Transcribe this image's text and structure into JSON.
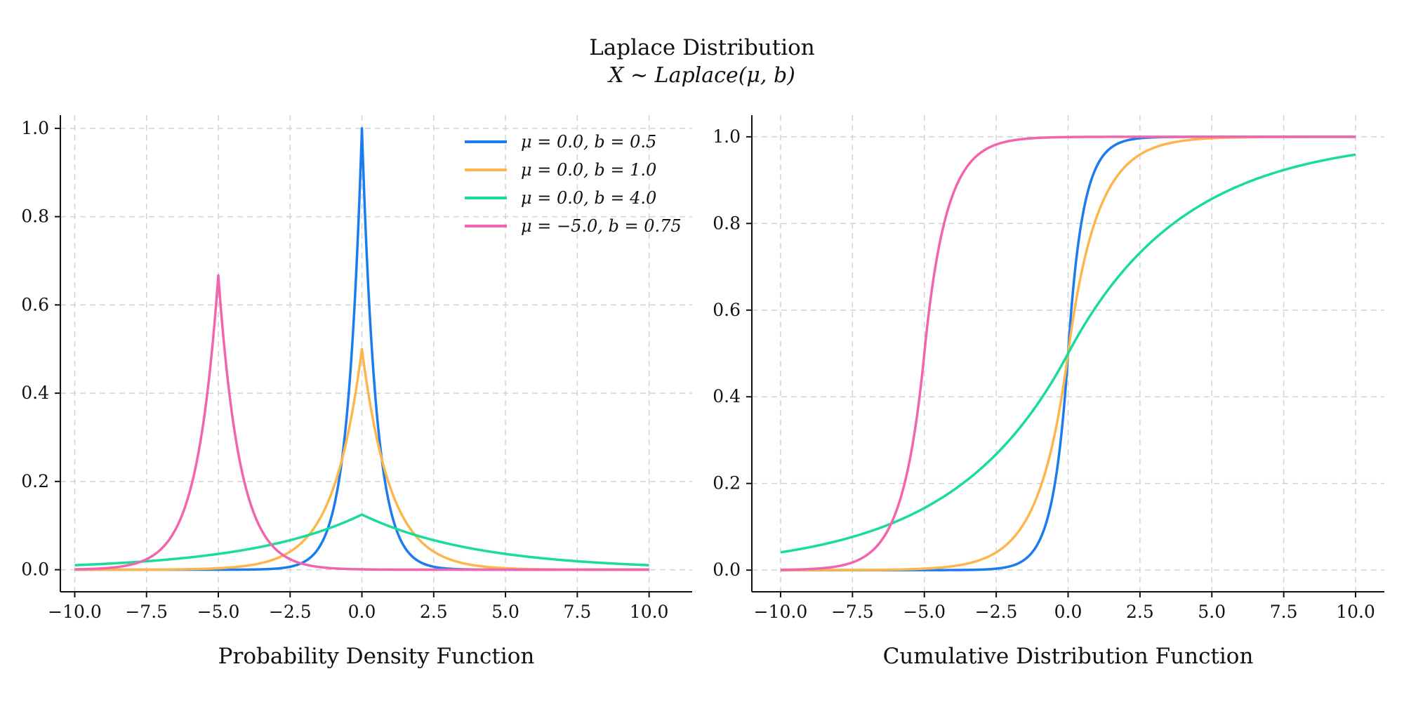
{
  "figure": {
    "title": "Laplace Distribution",
    "subtitle": "X ∼ Laplace(μ, b)"
  },
  "chart_data": [
    {
      "type": "line",
      "name": "pdf-panel",
      "xlabel": "Probability Density Function",
      "ylabel": "",
      "xlim": [
        -10.5,
        11.5
      ],
      "ylim": [
        -0.05,
        1.03
      ],
      "xticks": [
        -10,
        -7.5,
        -5,
        -2.5,
        0,
        2.5,
        5,
        7.5,
        10
      ],
      "xtick_labels": [
        "−10.0",
        "−7.5",
        "−5.0",
        "−2.5",
        "0.0",
        "2.5",
        "5.0",
        "7.5",
        "10.0"
      ],
      "yticks": [
        0,
        0.2,
        0.4,
        0.6,
        0.8,
        1.0
      ],
      "ytick_labels": [
        "0.0",
        "0.2",
        "0.4",
        "0.6",
        "0.8",
        "1.0"
      ],
      "grid": true,
      "legend": "top-right",
      "function": "pdf",
      "x_range": [
        -10,
        10
      ],
      "series": [
        {
          "name": "μ = 0.0, b = 0.5",
          "mu": 0.0,
          "b": 0.5,
          "color": "#1a7cf0"
        },
        {
          "name": "μ = 0.0, b = 1.0",
          "mu": 0.0,
          "b": 1.0,
          "color": "#fcb64d"
        },
        {
          "name": "μ = 0.0, b = 4.0",
          "mu": 0.0,
          "b": 4.0,
          "color": "#19dc9a"
        },
        {
          "name": "μ = −5.0, b = 0.75",
          "mu": -5.0,
          "b": 0.75,
          "color": "#f265ae"
        }
      ]
    },
    {
      "type": "line",
      "name": "cdf-panel",
      "xlabel": "Cumulative Distribution Function",
      "ylabel": "",
      "xlim": [
        -11,
        11
      ],
      "ylim": [
        -0.05,
        1.05
      ],
      "xticks": [
        -10,
        -7.5,
        -5,
        -2.5,
        0,
        2.5,
        5,
        7.5,
        10
      ],
      "xtick_labels": [
        "−10.0",
        "−7.5",
        "−5.0",
        "−2.5",
        "0.0",
        "2.5",
        "5.0",
        "7.5",
        "10.0"
      ],
      "yticks": [
        0,
        0.2,
        0.4,
        0.6,
        0.8,
        1.0
      ],
      "ytick_labels": [
        "0.0",
        "0.2",
        "0.4",
        "0.6",
        "0.8",
        "1.0"
      ],
      "grid": true,
      "legend": "none",
      "function": "cdf",
      "x_range": [
        -10,
        10
      ],
      "series": [
        {
          "mu": 0.0,
          "b": 0.5,
          "color": "#1a7cf0"
        },
        {
          "mu": 0.0,
          "b": 1.0,
          "color": "#fcb64d"
        },
        {
          "mu": 0.0,
          "b": 4.0,
          "color": "#19dc9a"
        },
        {
          "mu": -5.0,
          "b": 0.75,
          "color": "#f265ae"
        }
      ]
    }
  ]
}
